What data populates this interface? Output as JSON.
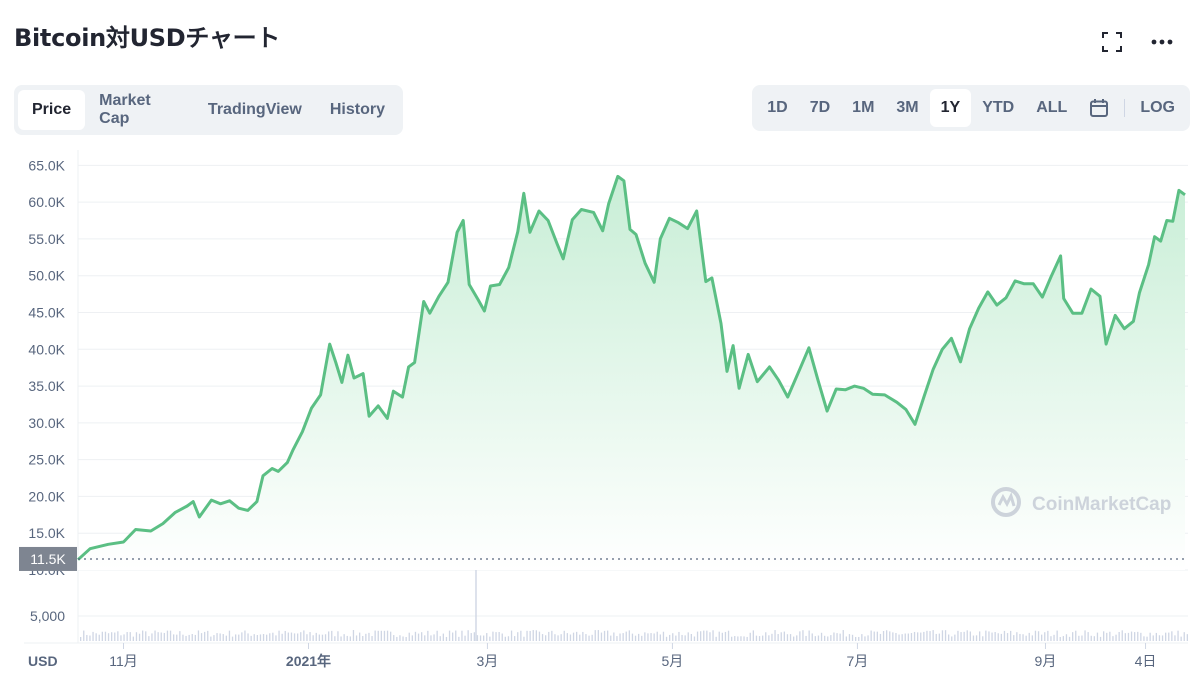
{
  "header": {
    "title": "Bitcoin対USDチャート"
  },
  "icons": {
    "fullscreen": "fullscreen-icon",
    "more": "more-dots-icon",
    "calendar": "calendar-icon"
  },
  "tabs": [
    {
      "label": "Price",
      "active": true
    },
    {
      "label": "Market Cap",
      "active": false
    },
    {
      "label": "TradingView",
      "active": false
    },
    {
      "label": "History",
      "active": false
    }
  ],
  "ranges": [
    {
      "label": "1D",
      "active": false
    },
    {
      "label": "7D",
      "active": false
    },
    {
      "label": "1M",
      "active": false
    },
    {
      "label": "3M",
      "active": false
    },
    {
      "label": "1Y",
      "active": true
    },
    {
      "label": "YTD",
      "active": false
    },
    {
      "label": "ALL",
      "active": false
    }
  ],
  "log_label": "LOG",
  "currency_label": "USD",
  "watermark": "CoinMarketCap",
  "colors": {
    "line": "#5bbf84",
    "area_top": "#c8eed6",
    "area_bottom": "#ffffff",
    "marker_bg": "#7e8591",
    "volume": "#cfd6e4"
  },
  "chart_data": {
    "type": "area",
    "ylabel": "USD",
    "ylim": [
      10000,
      66000
    ],
    "yticks": [
      {
        "value": 10000,
        "label": "10.0K"
      },
      {
        "value": 15000,
        "label": "15.0K"
      },
      {
        "value": 20000,
        "label": "20.0K"
      },
      {
        "value": 25000,
        "label": "25.0K"
      },
      {
        "value": 30000,
        "label": "30.0K"
      },
      {
        "value": 35000,
        "label": "35.0K"
      },
      {
        "value": 40000,
        "label": "40.0K"
      },
      {
        "value": 45000,
        "label": "45.0K"
      },
      {
        "value": 50000,
        "label": "50.0K"
      },
      {
        "value": 55000,
        "label": "55.0K"
      },
      {
        "value": 60000,
        "label": "60.0K"
      },
      {
        "value": 65000,
        "label": "65.0K"
      }
    ],
    "volume_tick": {
      "value": 5000,
      "label": "5,000"
    },
    "current_marker": {
      "value": 11500,
      "label": "11.5K"
    },
    "xticks": [
      {
        "date": "2020-11-01",
        "label": "11月"
      },
      {
        "date": "2021-01-01",
        "label": "2021年"
      },
      {
        "date": "2021-03-01",
        "label": "3月"
      },
      {
        "date": "2021-05-01",
        "label": "5月"
      },
      {
        "date": "2021-07-01",
        "label": "7月"
      },
      {
        "date": "2021-09-01",
        "label": "9月"
      },
      {
        "date": "2021-10-04",
        "label": "4日"
      }
    ],
    "xlim": [
      "2020-10-17",
      "2021-10-18"
    ],
    "series": [
      {
        "values": [
          [
            "2020-10-17",
            11400
          ],
          [
            "2020-10-21",
            12900
          ],
          [
            "2020-10-27",
            13500
          ],
          [
            "2020-11-01",
            13800
          ],
          [
            "2020-11-05",
            15500
          ],
          [
            "2020-11-10",
            15300
          ],
          [
            "2020-11-14",
            16300
          ],
          [
            "2020-11-18",
            17800
          ],
          [
            "2020-11-22",
            18700
          ],
          [
            "2020-11-24",
            19300
          ],
          [
            "2020-11-26",
            17200
          ],
          [
            "2020-11-30",
            19500
          ],
          [
            "2020-12-03",
            19000
          ],
          [
            "2020-12-06",
            19400
          ],
          [
            "2020-12-09",
            18400
          ],
          [
            "2020-12-12",
            18100
          ],
          [
            "2020-12-15",
            19300
          ],
          [
            "2020-12-17",
            22800
          ],
          [
            "2020-12-20",
            23800
          ],
          [
            "2020-12-22",
            23400
          ],
          [
            "2020-12-25",
            24600
          ],
          [
            "2020-12-27",
            26400
          ],
          [
            "2020-12-30",
            28800
          ],
          [
            "2021-01-02",
            32000
          ],
          [
            "2021-01-05",
            33800
          ],
          [
            "2021-01-08",
            40700
          ],
          [
            "2021-01-10",
            38200
          ],
          [
            "2021-01-12",
            35500
          ],
          [
            "2021-01-14",
            39200
          ],
          [
            "2021-01-16",
            36100
          ],
          [
            "2021-01-19",
            36700
          ],
          [
            "2021-01-21",
            30900
          ],
          [
            "2021-01-24",
            32300
          ],
          [
            "2021-01-27",
            30600
          ],
          [
            "2021-01-29",
            34300
          ],
          [
            "2021-02-01",
            33500
          ],
          [
            "2021-02-03",
            37600
          ],
          [
            "2021-02-05",
            38200
          ],
          [
            "2021-02-08",
            46500
          ],
          [
            "2021-02-10",
            44900
          ],
          [
            "2021-02-13",
            47200
          ],
          [
            "2021-02-16",
            49100
          ],
          [
            "2021-02-19",
            55900
          ],
          [
            "2021-02-21",
            57500
          ],
          [
            "2021-02-23",
            48800
          ],
          [
            "2021-02-26",
            46700
          ],
          [
            "2021-02-28",
            45200
          ],
          [
            "2021-03-02",
            48600
          ],
          [
            "2021-03-05",
            48800
          ],
          [
            "2021-03-08",
            51100
          ],
          [
            "2021-03-11",
            56000
          ],
          [
            "2021-03-13",
            61200
          ],
          [
            "2021-03-15",
            55900
          ],
          [
            "2021-03-18",
            58800
          ],
          [
            "2021-03-21",
            57500
          ],
          [
            "2021-03-24",
            54300
          ],
          [
            "2021-03-26",
            52300
          ],
          [
            "2021-03-29",
            57600
          ],
          [
            "2021-04-01",
            59000
          ],
          [
            "2021-04-05",
            58600
          ],
          [
            "2021-04-08",
            56100
          ],
          [
            "2021-04-10",
            59800
          ],
          [
            "2021-04-13",
            63500
          ],
          [
            "2021-04-15",
            62900
          ],
          [
            "2021-04-17",
            56300
          ],
          [
            "2021-04-19",
            55600
          ],
          [
            "2021-04-22",
            51700
          ],
          [
            "2021-04-25",
            49100
          ],
          [
            "2021-04-27",
            55000
          ],
          [
            "2021-04-30",
            57800
          ],
          [
            "2021-05-03",
            57200
          ],
          [
            "2021-05-06",
            56400
          ],
          [
            "2021-05-09",
            58800
          ],
          [
            "2021-05-12",
            49200
          ],
          [
            "2021-05-14",
            49700
          ],
          [
            "2021-05-17",
            43500
          ],
          [
            "2021-05-19",
            37000
          ],
          [
            "2021-05-21",
            40500
          ],
          [
            "2021-05-23",
            34700
          ],
          [
            "2021-05-26",
            39300
          ],
          [
            "2021-05-29",
            35600
          ],
          [
            "2021-06-02",
            37600
          ],
          [
            "2021-06-05",
            35800
          ],
          [
            "2021-06-08",
            33500
          ],
          [
            "2021-06-12",
            37300
          ],
          [
            "2021-06-15",
            40200
          ],
          [
            "2021-06-18",
            35800
          ],
          [
            "2021-06-21",
            31600
          ],
          [
            "2021-06-24",
            34600
          ],
          [
            "2021-06-27",
            34500
          ],
          [
            "2021-06-30",
            35000
          ],
          [
            "2021-07-03",
            34700
          ],
          [
            "2021-07-06",
            33900
          ],
          [
            "2021-07-10",
            33800
          ],
          [
            "2021-07-14",
            32800
          ],
          [
            "2021-07-17",
            31800
          ],
          [
            "2021-07-20",
            29800
          ],
          [
            "2021-07-23",
            33600
          ],
          [
            "2021-07-26",
            37300
          ],
          [
            "2021-07-29",
            40000
          ],
          [
            "2021-08-01",
            41500
          ],
          [
            "2021-08-04",
            38300
          ],
          [
            "2021-08-07",
            42800
          ],
          [
            "2021-08-10",
            45600
          ],
          [
            "2021-08-13",
            47800
          ],
          [
            "2021-08-16",
            46000
          ],
          [
            "2021-08-19",
            47000
          ],
          [
            "2021-08-22",
            49300
          ],
          [
            "2021-08-25",
            48900
          ],
          [
            "2021-08-28",
            48900
          ],
          [
            "2021-08-31",
            47100
          ],
          [
            "2021-09-03",
            50000
          ],
          [
            "2021-09-06",
            52700
          ],
          [
            "2021-09-07",
            46900
          ],
          [
            "2021-09-10",
            44900
          ],
          [
            "2021-09-13",
            44900
          ],
          [
            "2021-09-16",
            48200
          ],
          [
            "2021-09-19",
            47200
          ],
          [
            "2021-09-21",
            40700
          ],
          [
            "2021-09-24",
            44600
          ],
          [
            "2021-09-27",
            42800
          ],
          [
            "2021-09-30",
            43800
          ],
          [
            "2021-10-02",
            47700
          ],
          [
            "2021-10-05",
            51500
          ],
          [
            "2021-10-07",
            55300
          ],
          [
            "2021-10-09",
            54700
          ],
          [
            "2021-10-11",
            57500
          ],
          [
            "2021-10-13",
            57400
          ],
          [
            "2021-10-15",
            61600
          ],
          [
            "2021-10-17",
            61000
          ]
        ]
      }
    ],
    "volume_spikes": [
      {
        "date": "2021-02-25",
        "value": 9000
      }
    ],
    "grid": true,
    "legend": "none"
  }
}
